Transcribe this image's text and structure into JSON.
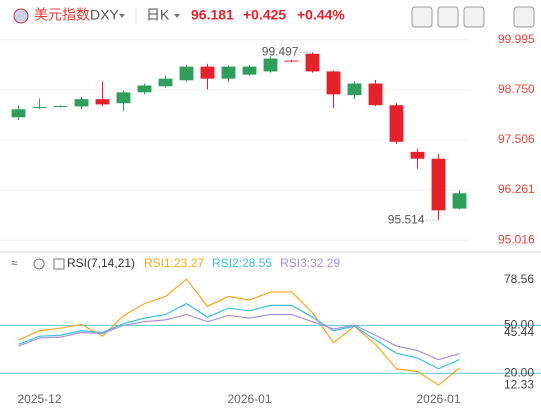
{
  "header": {
    "name": "美元指数",
    "symbol": "DXY",
    "period": "日K",
    "price": "96.181",
    "change": "+0.425",
    "change_pct": "+0.44%"
  },
  "chart_data": [
    {
      "type": "candlestick",
      "up_color": "#2e9e5a",
      "down_color": "#e5222c",
      "grid": true,
      "categories": [
        null,
        "2025-12",
        null,
        null,
        null,
        null,
        null,
        null,
        null,
        null,
        null,
        "2026-01",
        null,
        null,
        null,
        null,
        null,
        null,
        null,
        null,
        "2026-01",
        null
      ],
      "open": [
        98.07,
        98.32,
        98.34,
        98.34,
        98.52,
        98.42,
        98.69,
        98.84,
        98.99,
        99.33,
        99.03,
        99.13,
        99.21,
        99.48,
        99.65,
        99.21,
        98.62,
        98.91,
        98.37,
        97.21,
        97.04,
        95.8
      ],
      "high": [
        98.37,
        98.54,
        98.37,
        98.57,
        98.96,
        98.74,
        98.91,
        99.11,
        99.38,
        99.4,
        99.36,
        99.36,
        99.58,
        99.497,
        99.68,
        99.23,
        98.96,
        99.0,
        98.42,
        97.29,
        97.16,
        96.25
      ],
      "low": [
        98.0,
        98.27,
        98.32,
        98.27,
        98.34,
        98.22,
        98.64,
        98.81,
        98.96,
        98.76,
        98.94,
        99.11,
        99.18,
        99.44,
        99.18,
        98.3,
        98.52,
        98.35,
        97.41,
        96.79,
        95.514,
        95.78
      ],
      "close": [
        98.27,
        98.33,
        98.35,
        98.52,
        98.39,
        98.69,
        98.86,
        99.03,
        99.33,
        99.03,
        99.33,
        99.33,
        99.53,
        99.47,
        99.21,
        98.64,
        98.91,
        98.37,
        97.46,
        97.04,
        95.756,
        96.181
      ],
      "annotations": [
        "99.497",
        "95.514"
      ],
      "ylim": [
        94.82,
        100.24
      ],
      "yticks": [
        99.995,
        {
          "value": 98.75,
          "label": "98.750"
        },
        97.506,
        96.261,
        95.016
      ]
    },
    {
      "type": "line",
      "title": "RSI(7,14,21)",
      "series": [
        {
          "name": "RSI1:23.27",
          "color": "#f5a623",
          "values": [
            40.9,
            46.6,
            48.3,
            50.5,
            43.2,
            56.0,
            63.6,
            68.1,
            78.9,
            61.9,
            68.1,
            65.8,
            70.9,
            70.9,
            57.9,
            39.2,
            49.4,
            38.1,
            22.8,
            21.1,
            12.6,
            23.27
          ]
        },
        {
          "name": "RSI2:28.55",
          "color": "#3fbfd6",
          "values": [
            38.1,
            43.2,
            43.8,
            46.6,
            45.5,
            51.1,
            54.5,
            56.8,
            63.6,
            55.1,
            60.8,
            59.1,
            62.5,
            62.5,
            55.1,
            46.6,
            49.4,
            40.9,
            32.5,
            29.6,
            22.8,
            28.55
          ]
        },
        {
          "name": "RSI3:32.29",
          "color": "#a98fdc",
          "values": [
            37.0,
            42.1,
            42.6,
            45.5,
            44.9,
            50.0,
            52.3,
            53.4,
            56.8,
            52.3,
            56.2,
            54.5,
            56.8,
            56.8,
            52.3,
            47.7,
            50.2,
            43.8,
            37.0,
            34.2,
            28.5,
            32.29
          ]
        }
      ],
      "ylim": [
        7,
        83.4
      ],
      "yticks": [
        78.56,
        {
          "value": 50,
          "label": "50.00"
        },
        45.44,
        {
          "value": 20,
          "label": "20.00"
        },
        12.33
      ],
      "guide_lines": [
        50,
        20
      ],
      "guide_color": "#5ac8d8"
    }
  ]
}
